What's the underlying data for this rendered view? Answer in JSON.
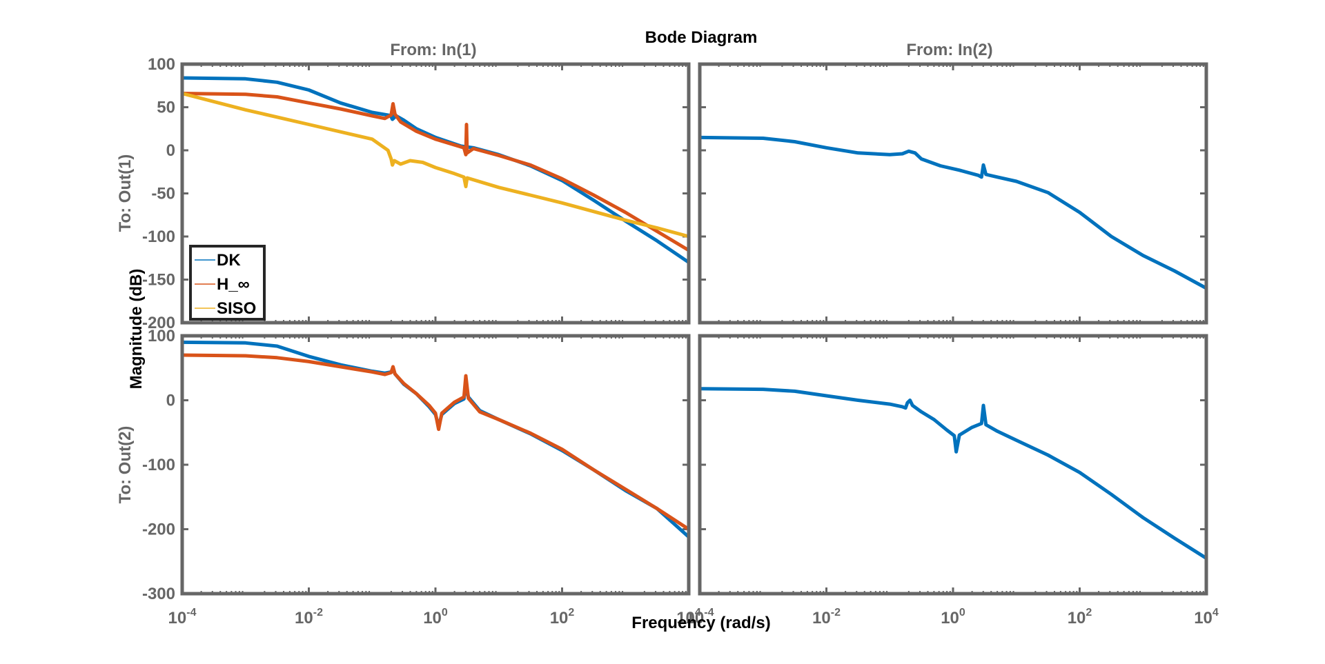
{
  "chart_data": {
    "type": "line",
    "title": "Bode Diagram",
    "xlabel": "Frequency  (rad/s)",
    "ylabel": "Magnitude (dB)",
    "x_scale": "log",
    "xlim": [
      0.0001,
      10000
    ],
    "x_ticks": [
      {
        "base": "10",
        "exp": "-4",
        "value": 0.0001
      },
      {
        "base": "10",
        "exp": "-2",
        "value": 0.01
      },
      {
        "base": "10",
        "exp": "0",
        "value": 1
      },
      {
        "base": "10",
        "exp": "2",
        "value": 100
      },
      {
        "base": "10",
        "exp": "4",
        "value": 10000
      }
    ],
    "columns": [
      "From: In(1)",
      "From: In(2)"
    ],
    "rows": [
      "To: Out(1)",
      "To: Out(2)"
    ],
    "legend": {
      "placement": "bottom-left of top-left panel",
      "entries": [
        {
          "name": "DK",
          "color": "#0072bd"
        },
        {
          "name": "H_∞",
          "color": "#d95319"
        },
        {
          "name": "SISO",
          "color": "#edb120"
        }
      ]
    },
    "panels": [
      {
        "id": "out1-in1",
        "ylim": [
          -200,
          100
        ],
        "y_ticks": [
          100,
          50,
          0,
          -50,
          -100,
          -150,
          -200
        ],
        "y_tick_labels": [
          "100",
          "50",
          "0",
          "-50",
          "-100",
          "-150",
          "-200"
        ],
        "series": [
          {
            "name": "DK",
            "color": "#0072bd",
            "points": [
              [
                -4,
                84
              ],
              [
                -3,
                83
              ],
              [
                -2.5,
                79
              ],
              [
                -2,
                70
              ],
              [
                -1.5,
                55
              ],
              [
                -1,
                44
              ],
              [
                -0.6,
                39
              ],
              [
                -0.7,
                39
              ],
              [
                -0.68,
                36
              ],
              [
                -0.62,
                40
              ],
              [
                -0.5,
                35
              ],
              [
                -0.3,
                25
              ],
              [
                0,
                15
              ],
              [
                0.4,
                5
              ],
              [
                0.6,
                3
              ],
              [
                1,
                -5
              ],
              [
                1.5,
                -18
              ],
              [
                2,
                -35
              ],
              [
                2.5,
                -58
              ],
              [
                3,
                -82
              ],
              [
                3.5,
                -105
              ],
              [
                4,
                -130
              ]
            ]
          },
          {
            "name": "H_∞",
            "color": "#d95319",
            "points": [
              [
                -4,
                66
              ],
              [
                -3,
                65
              ],
              [
                -2.5,
                62
              ],
              [
                -2,
                55
              ],
              [
                -1.5,
                48
              ],
              [
                -1,
                40
              ],
              [
                -0.8,
                37
              ],
              [
                -0.7,
                41
              ],
              [
                -0.67,
                54
              ],
              [
                -0.64,
                42
              ],
              [
                -0.55,
                33
              ],
              [
                -0.3,
                22
              ],
              [
                0,
                13
              ],
              [
                0.45,
                3
              ],
              [
                0.48,
                -5
              ],
              [
                0.49,
                30
              ],
              [
                0.5,
                -3
              ],
              [
                0.6,
                2
              ],
              [
                1,
                -6
              ],
              [
                1.5,
                -17
              ],
              [
                2,
                -33
              ],
              [
                2.5,
                -52
              ],
              [
                3,
                -72
              ],
              [
                3.5,
                -94
              ],
              [
                4,
                -116
              ]
            ]
          },
          {
            "name": "SISO",
            "color": "#edb120",
            "points": [
              [
                -4,
                66
              ],
              [
                -3,
                47
              ],
              [
                -2,
                30
              ],
              [
                -1,
                13
              ],
              [
                -0.75,
                0
              ],
              [
                -0.7,
                -10
              ],
              [
                -0.68,
                -17
              ],
              [
                -0.65,
                -12
              ],
              [
                -0.55,
                -16
              ],
              [
                -0.4,
                -12
              ],
              [
                -0.2,
                -14
              ],
              [
                0,
                -20
              ],
              [
                0.3,
                -27
              ],
              [
                0.45,
                -31
              ],
              [
                0.48,
                -42
              ],
              [
                0.5,
                -32
              ],
              [
                1,
                -43
              ],
              [
                1.5,
                -52
              ],
              [
                2,
                -61
              ],
              [
                2.5,
                -71
              ],
              [
                3,
                -81
              ],
              [
                3.5,
                -90
              ],
              [
                4,
                -100
              ]
            ]
          }
        ]
      },
      {
        "id": "out1-in2",
        "ylim": [
          -200,
          100
        ],
        "y_ticks": [
          100,
          50,
          0,
          -50,
          -100,
          -150,
          -200
        ],
        "y_tick_labels": [],
        "series": [
          {
            "name": "DK",
            "color": "#0072bd",
            "points": [
              [
                -4,
                15
              ],
              [
                -3,
                14
              ],
              [
                -2.5,
                10
              ],
              [
                -2,
                3
              ],
              [
                -1.5,
                -3
              ],
              [
                -1,
                -5
              ],
              [
                -0.8,
                -4
              ],
              [
                -0.7,
                -1
              ],
              [
                -0.6,
                -3
              ],
              [
                -0.5,
                -10
              ],
              [
                -0.2,
                -18
              ],
              [
                0.1,
                -23
              ],
              [
                0.4,
                -29
              ],
              [
                0.45,
                -31
              ],
              [
                0.48,
                -17
              ],
              [
                0.52,
                -28
              ],
              [
                0.7,
                -31
              ],
              [
                1,
                -36
              ],
              [
                1.5,
                -49
              ],
              [
                2,
                -72
              ],
              [
                2.5,
                -100
              ],
              [
                3,
                -122
              ],
              [
                3.5,
                -140
              ],
              [
                4,
                -160
              ]
            ]
          }
        ]
      },
      {
        "id": "out2-in1",
        "ylim": [
          -300,
          100
        ],
        "y_ticks": [
          100,
          0,
          -100,
          -200,
          -300
        ],
        "y_tick_labels": [
          "100",
          "0",
          "-100",
          "-200",
          "-300"
        ],
        "series": [
          {
            "name": "DK",
            "color": "#0072bd",
            "points": [
              [
                -4,
                90
              ],
              [
                -3,
                89
              ],
              [
                -2.5,
                84
              ],
              [
                -2,
                68
              ],
              [
                -1.5,
                55
              ],
              [
                -1,
                45
              ],
              [
                -0.8,
                42
              ],
              [
                -0.7,
                44
              ],
              [
                -0.67,
                50
              ],
              [
                -0.64,
                41
              ],
              [
                -0.5,
                25
              ],
              [
                -0.3,
                10
              ],
              [
                -0.1,
                -10
              ],
              [
                0,
                -22
              ],
              [
                0.05,
                -40
              ],
              [
                0.1,
                -22
              ],
              [
                0.3,
                -5
              ],
              [
                0.45,
                2
              ],
              [
                0.48,
                25
              ],
              [
                0.52,
                5
              ],
              [
                0.7,
                -16
              ],
              [
                1,
                -30
              ],
              [
                1.5,
                -52
              ],
              [
                2,
                -78
              ],
              [
                2.5,
                -108
              ],
              [
                3,
                -140
              ],
              [
                3.5,
                -168
              ],
              [
                4,
                -212
              ]
            ]
          },
          {
            "name": "H_∞",
            "color": "#d95319",
            "points": [
              [
                -4,
                70
              ],
              [
                -3,
                69
              ],
              [
                -2.5,
                66
              ],
              [
                -2,
                60
              ],
              [
                -1.5,
                52
              ],
              [
                -1,
                44
              ],
              [
                -0.8,
                40
              ],
              [
                -0.7,
                43
              ],
              [
                -0.67,
                52
              ],
              [
                -0.64,
                41
              ],
              [
                -0.5,
                26
              ],
              [
                -0.3,
                10
              ],
              [
                -0.1,
                -8
              ],
              [
                0,
                -20
              ],
              [
                0.05,
                -45
              ],
              [
                0.1,
                -20
              ],
              [
                0.3,
                -3
              ],
              [
                0.45,
                5
              ],
              [
                0.48,
                38
              ],
              [
                0.52,
                3
              ],
              [
                0.7,
                -18
              ],
              [
                1,
                -30
              ],
              [
                1.5,
                -51
              ],
              [
                2,
                -76
              ],
              [
                2.5,
                -108
              ],
              [
                3,
                -138
              ],
              [
                3.5,
                -168
              ],
              [
                4,
                -200
              ]
            ]
          }
        ]
      },
      {
        "id": "out2-in2",
        "ylim": [
          -300,
          100
        ],
        "y_ticks": [
          100,
          0,
          -100,
          -200,
          -300
        ],
        "y_tick_labels": [],
        "series": [
          {
            "name": "DK",
            "color": "#0072bd",
            "points": [
              [
                -4,
                18
              ],
              [
                -3,
                17
              ],
              [
                -2.5,
                14
              ],
              [
                -2,
                7
              ],
              [
                -1.5,
                0
              ],
              [
                -1,
                -6
              ],
              [
                -0.8,
                -10
              ],
              [
                -0.75,
                -12
              ],
              [
                -0.72,
                -4
              ],
              [
                -0.68,
                0
              ],
              [
                -0.64,
                -8
              ],
              [
                -0.5,
                -18
              ],
              [
                -0.3,
                -30
              ],
              [
                -0.1,
                -46
              ],
              [
                0.02,
                -55
              ],
              [
                0.05,
                -80
              ],
              [
                0.1,
                -54
              ],
              [
                0.3,
                -42
              ],
              [
                0.45,
                -36
              ],
              [
                0.48,
                -8
              ],
              [
                0.52,
                -38
              ],
              [
                0.7,
                -48
              ],
              [
                1,
                -62
              ],
              [
                1.5,
                -85
              ],
              [
                2,
                -112
              ],
              [
                2.5,
                -146
              ],
              [
                3,
                -182
              ],
              [
                3.5,
                -214
              ],
              [
                4,
                -245
              ]
            ]
          }
        ]
      }
    ]
  }
}
